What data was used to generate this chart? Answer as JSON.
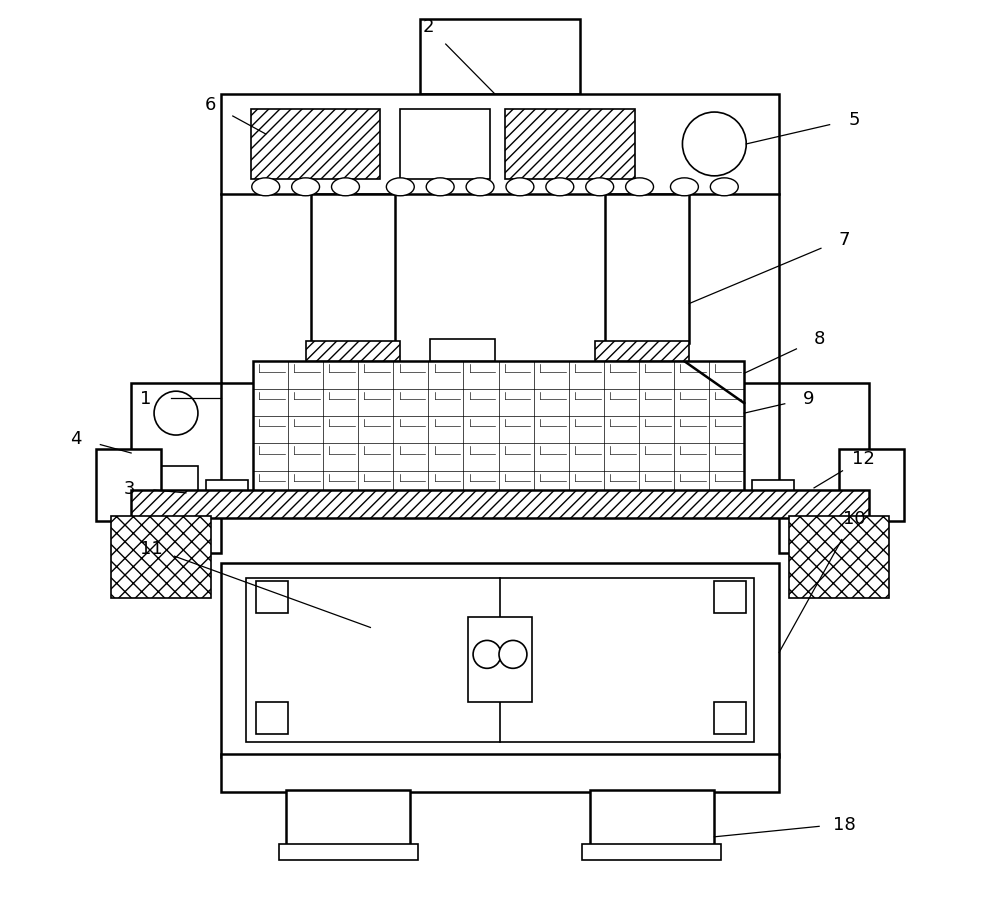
{
  "bg_color": "#ffffff",
  "line_color": "#000000",
  "fig_width": 10.0,
  "fig_height": 9.04,
  "lw_main": 1.8,
  "lw_thin": 1.2,
  "label_fs": 13
}
